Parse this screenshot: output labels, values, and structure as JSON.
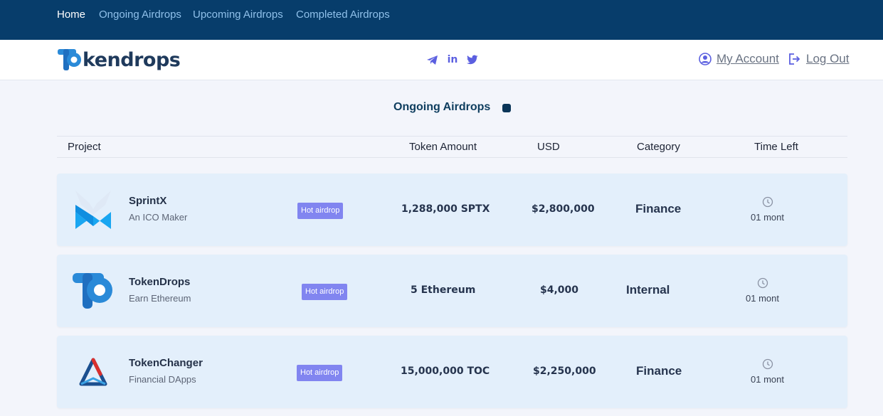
{
  "topnav": {
    "items": [
      {
        "label": "Home",
        "active": true
      },
      {
        "label": "Ongoing Airdrops",
        "active": false
      },
      {
        "label": "Upcoming Airdrops",
        "active": false
      },
      {
        "label": "Completed Airdrops",
        "active": false
      }
    ]
  },
  "header": {
    "logo_text": "kendrops",
    "social": [
      "telegram-icon",
      "linkedin-icon",
      "twitter-icon"
    ],
    "linkedin_label": "in",
    "my_account": "My Account",
    "log_out": "Log Out"
  },
  "section": {
    "title": "Ongoing Airdrops"
  },
  "table": {
    "columns": [
      "Project",
      "Token Amount",
      "USD",
      "Category",
      "Time Left"
    ],
    "rows": [
      {
        "name": "SprintX",
        "subtitle": "An ICO Maker",
        "badge": "Hot airdrop",
        "amount": "1,288,000 SPTX",
        "usd": "$2,800,000",
        "category": "Finance",
        "time_left": "01 mont"
      },
      {
        "name": "TokenDrops",
        "subtitle": "Earn Ethereum",
        "badge": "Hot airdrop",
        "amount": "5 Ethereum",
        "usd": "$4,000",
        "category": "Internal",
        "time_left": "01 mont"
      },
      {
        "name": "TokenChanger",
        "subtitle": "Financial DApps",
        "badge": "Hot airdrop",
        "amount": "15,000,000 TOC",
        "usd": "$2,250,000",
        "category": "Finance",
        "time_left": "01 mont"
      }
    ]
  },
  "colors": {
    "topnav_bg": "#073d6b",
    "badge": "#8185f0",
    "row_bg": "#e3effb",
    "accent": "#5b5fe0"
  }
}
